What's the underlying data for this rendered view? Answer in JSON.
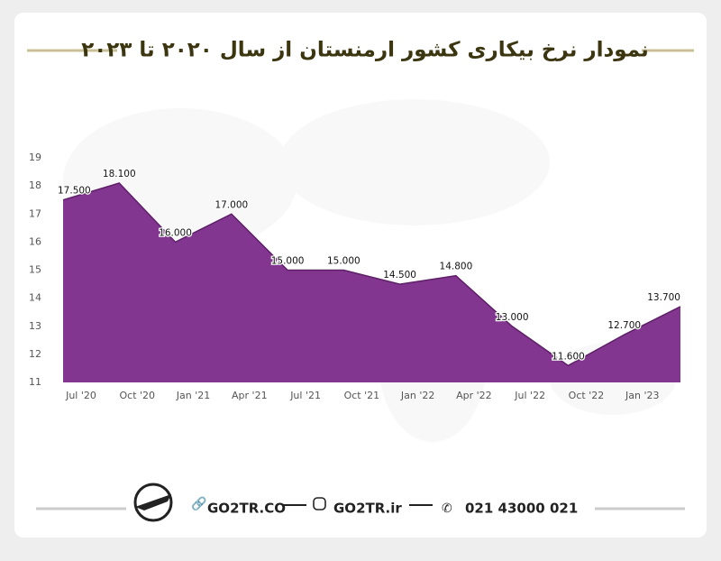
{
  "chart_data": {
    "type": "area",
    "title": "نمودار نرخ بیکاری کشور ارمنستان از سال ۲۰۲۰ تا ۲۰۲۳",
    "categories": [
      "Jul '20",
      "Oct '20",
      "Jan '21",
      "Apr '21",
      "Jul '21",
      "Oct '21",
      "Jan '22",
      "Apr '22",
      "Jul '22",
      "Oct '22",
      "Jan '23",
      null
    ],
    "values": [
      17.5,
      18.1,
      16.0,
      17.0,
      15.0,
      15.0,
      14.5,
      14.8,
      13.0,
      11.6,
      12.7,
      13.7
    ],
    "value_labels": [
      "17.500",
      "18.100",
      "16.000",
      "17.000",
      "15.000",
      "15.000",
      "14.500",
      "14.800",
      "13.000",
      "11.600",
      "12.700",
      "13.700"
    ],
    "color": "#82368f",
    "ylim": [
      11,
      19
    ],
    "yticks": [
      11,
      12,
      13,
      14,
      15,
      16,
      17,
      18,
      19
    ]
  },
  "footer": {
    "website": "GO2TR.CO",
    "instagram": "GO2TR.ir",
    "phone": "021 43000 021"
  }
}
